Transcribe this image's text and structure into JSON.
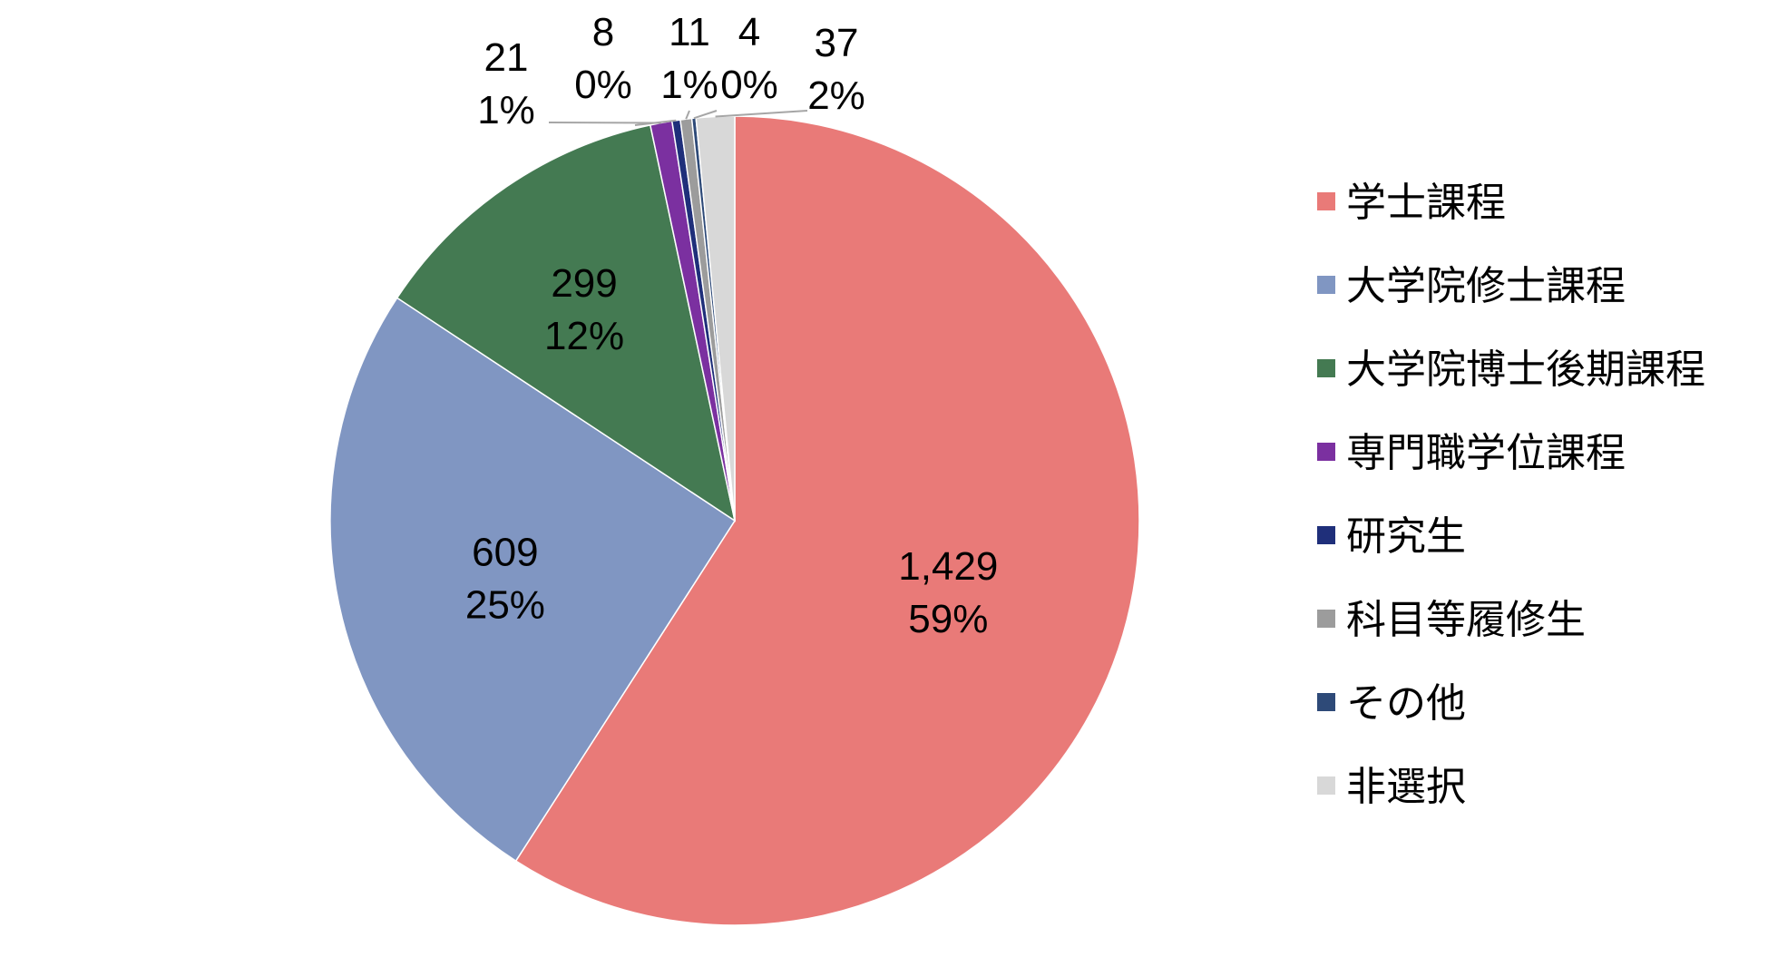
{
  "chart_data": {
    "type": "pie",
    "title": "",
    "legend_position": "right",
    "slices": [
      {
        "name": "学士課程",
        "value": 1429,
        "value_label": "1,429",
        "percent_label": "59%",
        "color": "#E97A78"
      },
      {
        "name": "大学院修士課程",
        "value": 609,
        "value_label": "609",
        "percent_label": "25%",
        "color": "#8096C2"
      },
      {
        "name": "大学院博士後期課程",
        "value": 299,
        "value_label": "299",
        "percent_label": "12%",
        "color": "#447A52"
      },
      {
        "name": "専門職学位課程",
        "value": 21,
        "value_label": "21",
        "percent_label": "1%",
        "color": "#7B30A0"
      },
      {
        "name": "研究生",
        "value": 8,
        "value_label": "8",
        "percent_label": "0%",
        "color": "#1F2F7A"
      },
      {
        "name": "科目等履修生",
        "value": 11,
        "value_label": "11",
        "percent_label": "1%",
        "color": "#9C9C9C"
      },
      {
        "name": "その他",
        "value": 4,
        "value_label": "4",
        "percent_label": "0%",
        "color": "#2E4A78"
      },
      {
        "name": "非選択",
        "value": 37,
        "value_label": "37",
        "percent_label": "2%",
        "color": "#D8D8D8"
      }
    ]
  }
}
